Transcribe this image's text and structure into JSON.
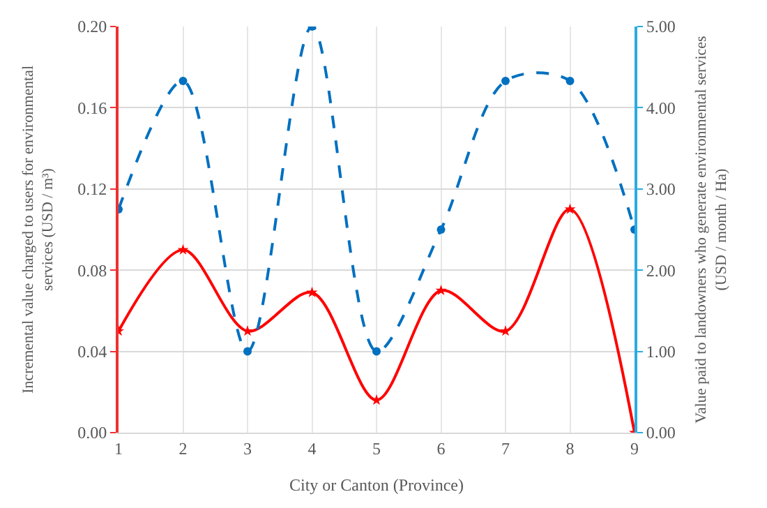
{
  "chart_data": {
    "type": "line",
    "xlabel": "City or Canton (Province)",
    "ylabel": "Incremental value charged to users for environmental services (USD / m³)",
    "y2label": "Value paid to landowners who generate environmental services (USD / month / Ha)",
    "x": [
      1,
      2,
      3,
      4,
      5,
      6,
      7,
      8,
      9
    ],
    "xlim": [
      1,
      9
    ],
    "xticks": [
      1,
      2,
      3,
      4,
      5,
      6,
      7,
      8,
      9
    ],
    "ylim": [
      0,
      0.2
    ],
    "yticks": [
      {
        "value": 0,
        "label": "0.00"
      },
      {
        "value": 0.04,
        "label": "0.04"
      },
      {
        "value": 0.08,
        "label": "0.08"
      },
      {
        "value": 0.12,
        "label": "0.12"
      },
      {
        "value": 0.16,
        "label": "0.16"
      },
      {
        "value": 0.2,
        "label": "0.20"
      }
    ],
    "y2lim": [
      0,
      5
    ],
    "y2ticks": [
      {
        "value": 0,
        "label": "0.00"
      },
      {
        "value": 1,
        "label": "1.00"
      },
      {
        "value": 2,
        "label": "2.00"
      },
      {
        "value": 3,
        "label": "3.00"
      },
      {
        "value": 4,
        "label": "4.00"
      },
      {
        "value": 5,
        "label": "5.00"
      }
    ],
    "grid": true,
    "series": [
      {
        "color": "#ff0000",
        "marker": "star",
        "line_style": "solid",
        "values": [
          0.05,
          0.09,
          0.05,
          0.069,
          0.016,
          0.07,
          0.05,
          0.11,
          0.0
        ]
      },
      {
        "color": "#0070c0",
        "marker": "circle",
        "line_style": "dashed",
        "axis": "y2",
        "values": [
          2.75,
          4.33,
          1.0,
          5.0,
          1.0,
          2.5,
          4.33,
          4.33,
          2.5
        ]
      }
    ]
  }
}
